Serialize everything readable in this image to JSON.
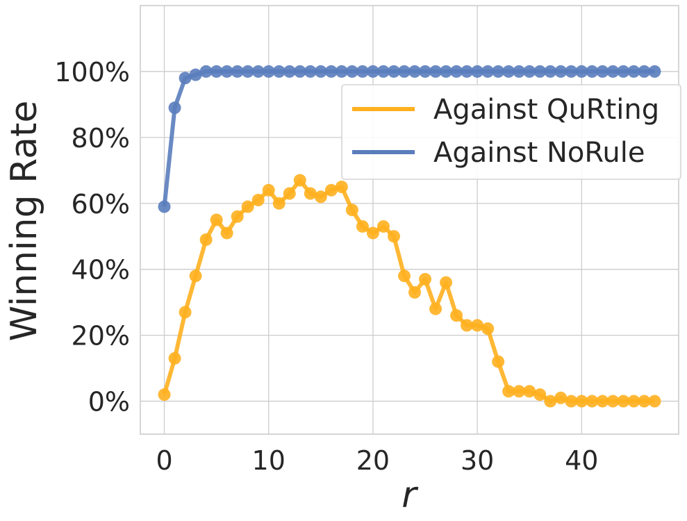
{
  "chart_data": {
    "type": "line",
    "title": "",
    "xlabel": "r",
    "ylabel": "Winning Rate",
    "xlim": [
      -2.3,
      49.3
    ],
    "ylim": [
      -10,
      120
    ],
    "xticks": [
      0,
      10,
      20,
      30,
      40
    ],
    "yticks": [
      0,
      20,
      40,
      60,
      80,
      100
    ],
    "ytick_format": "percent",
    "grid": true,
    "legend_position": "upper-right",
    "x": [
      0,
      1,
      2,
      3,
      4,
      5,
      6,
      7,
      8,
      9,
      10,
      11,
      12,
      13,
      14,
      15,
      16,
      17,
      18,
      19,
      20,
      21,
      22,
      23,
      24,
      25,
      26,
      27,
      28,
      29,
      30,
      31,
      32,
      33,
      34,
      35,
      36,
      37,
      38,
      39,
      40,
      41,
      42,
      43,
      44,
      45,
      46,
      47
    ],
    "series": [
      {
        "name": "Against QuRting",
        "color": "#ffb01f",
        "values": [
          2,
          13,
          27,
          38,
          49,
          55,
          51,
          56,
          59,
          61,
          64,
          60,
          63,
          67,
          63,
          62,
          64,
          65,
          58,
          53,
          51,
          53,
          50,
          38,
          33,
          37,
          28,
          36,
          26,
          23,
          23,
          22,
          12,
          3,
          3,
          3,
          2,
          0,
          1,
          0,
          0,
          0,
          0,
          0,
          0,
          0,
          0,
          0
        ]
      },
      {
        "name": "Against NoRule",
        "color": "#5a7dbc",
        "values": [
          59,
          89,
          98,
          99,
          100,
          100,
          100,
          100,
          100,
          100,
          100,
          100,
          100,
          100,
          100,
          100,
          100,
          100,
          100,
          100,
          100,
          100,
          100,
          100,
          100,
          100,
          100,
          100,
          100,
          100,
          100,
          100,
          100,
          100,
          100,
          100,
          100,
          100,
          100,
          100,
          100,
          100,
          100,
          100,
          100,
          100,
          100,
          100
        ]
      }
    ]
  }
}
